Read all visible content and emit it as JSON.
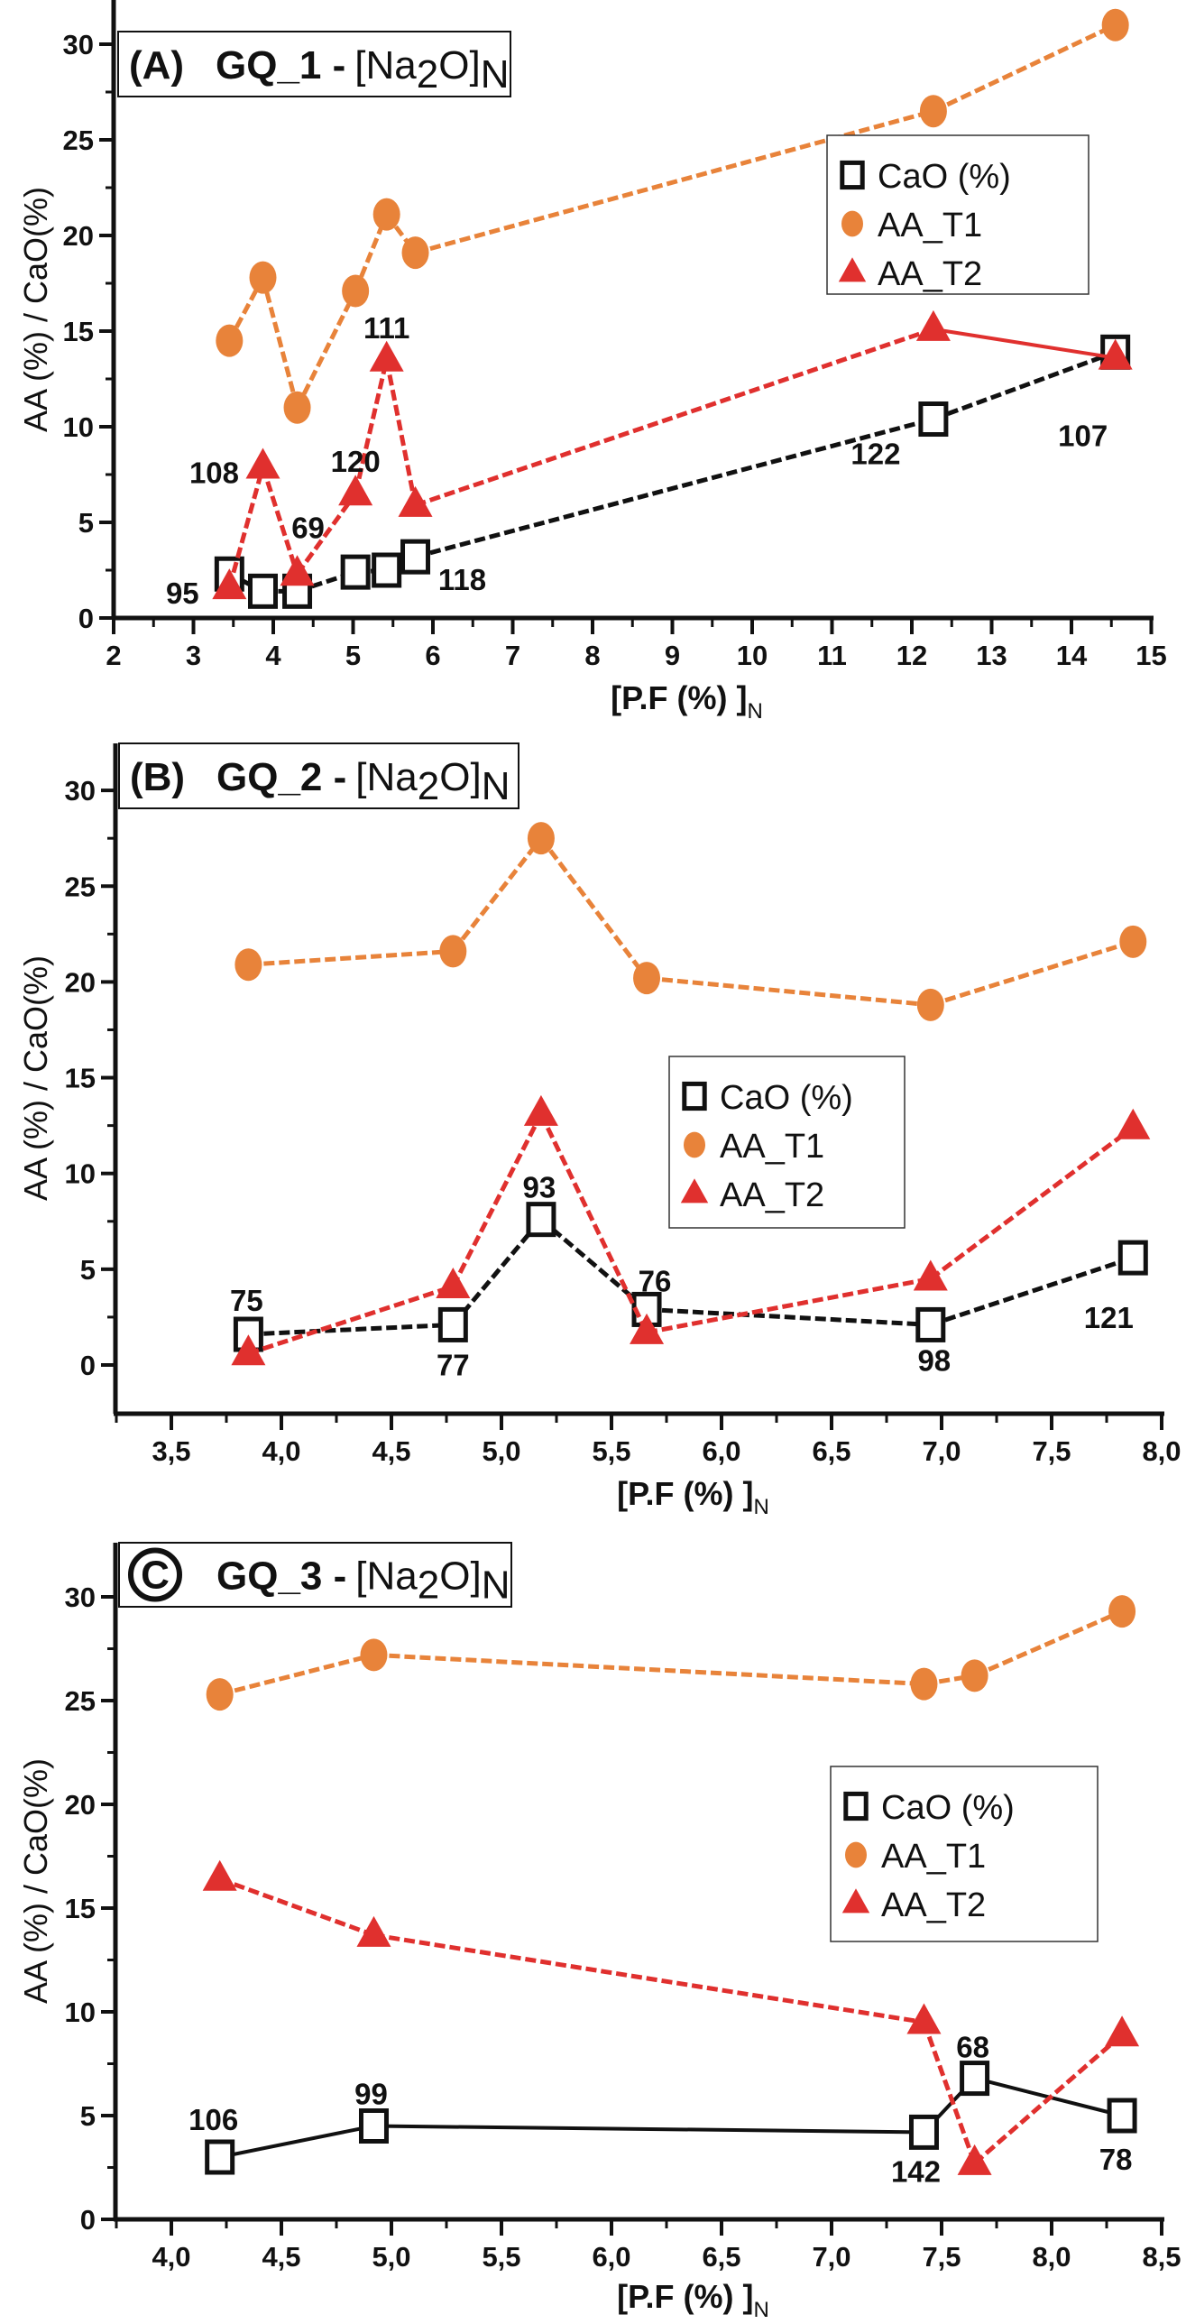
{
  "chart_data": [
    {
      "type": "line",
      "panel": "(A)",
      "title": {
        "sample": "GQ_1 -",
        "formula_open": "[Na",
        "formula_sub": "2",
        "formula_close": "O]",
        "formula_subscript": "N"
      },
      "xlabel": {
        "main": "[P.F (%) ]",
        "subscript": "N"
      },
      "ylabel": "AA (%) / CaO(%)",
      "xlim": [
        2,
        15
      ],
      "ylim": [
        0,
        32
      ],
      "xticks": [
        "2",
        "3",
        "4",
        "5",
        "6",
        "7",
        "8",
        "9",
        "10",
        "11",
        "12",
        "13",
        "14",
        "15"
      ],
      "yticks": [
        "0",
        "5",
        "10",
        "15",
        "20",
        "25",
        "30"
      ],
      "grid": false,
      "legend": "upper-right",
      "x": [
        3.45,
        3.87,
        4.3,
        5.03,
        5.42,
        5.78,
        12.27,
        14.55
      ],
      "series": [
        {
          "name": "CaO (%)",
          "marker": "open-square",
          "color": "#111111",
          "line": "dashed",
          "values": [
            2.3,
            1.4,
            1.4,
            2.4,
            2.5,
            3.2,
            10.4,
            13.9
          ]
        },
        {
          "name": "AA_T1",
          "marker": "circle",
          "color": "#E8833A",
          "line": "dashed",
          "values": [
            14.5,
            17.8,
            11.0,
            17.1,
            21.1,
            19.1,
            26.5,
            31.0
          ]
        },
        {
          "name": "AA_T2",
          "marker": "triangle",
          "color": "#E0302E",
          "line": "dashed",
          "values": [
            1.6,
            7.9,
            2.3,
            6.5,
            13.5,
            5.9,
            15.1,
            13.6
          ]
        }
      ],
      "point_labels": [
        "95",
        "108",
        "69",
        "120",
        "111",
        "118",
        "122",
        "107"
      ]
    },
    {
      "type": "line",
      "panel": "(B)",
      "title": {
        "sample": "GQ_2  -",
        "formula_open": "[Na",
        "formula_sub": "2",
        "formula_close": "O]",
        "formula_subscript": "N"
      },
      "xlabel": {
        "main": "[P.F (%) ]",
        "subscript": "N"
      },
      "ylabel": "AA (%) / CaO(%)",
      "xlim": [
        3.25,
        8.0
      ],
      "ylim": [
        -2.5,
        32
      ],
      "xticks": [
        "3,5",
        "4,0",
        "4,5",
        "5,0",
        "5,5",
        "6,0",
        "6,5",
        "7,0",
        "7,5",
        "8,0"
      ],
      "yticks": [
        "0",
        "5",
        "10",
        "15",
        "20",
        "25",
        "30"
      ],
      "grid": false,
      "legend": "center-right",
      "x": [
        3.85,
        4.78,
        5.18,
        5.66,
        6.95,
        7.87
      ],
      "series": [
        {
          "name": "CaO (%)",
          "marker": "open-square",
          "color": "#111111",
          "line": "dashed",
          "values": [
            1.6,
            2.1,
            7.6,
            2.9,
            2.1,
            5.6
          ]
        },
        {
          "name": "AA_T1",
          "marker": "circle",
          "color": "#E8833A",
          "line": "dashed",
          "values": [
            20.9,
            21.6,
            27.5,
            20.2,
            18.8,
            22.1
          ]
        },
        {
          "name": "AA_T2",
          "marker": "triangle",
          "color": "#E0302E",
          "line": "dashed",
          "values": [
            0.6,
            4.1,
            13.1,
            1.7,
            4.5,
            12.4
          ]
        }
      ],
      "point_labels": [
        "75",
        "77",
        "93",
        "76",
        "98",
        "121"
      ]
    },
    {
      "type": "line",
      "panel": "C",
      "title": {
        "sample": "GQ_3 -",
        "formula_open": "[Na",
        "formula_sub": "2",
        "formula_close": "O]",
        "formula_subscript": "N"
      },
      "xlabel": {
        "main": "[P.F (%) ]",
        "subscript": "N"
      },
      "ylabel": "AA (%) / CaO(%)",
      "xlim": [
        3.75,
        8.5
      ],
      "ylim": [
        0,
        32
      ],
      "xticks": [
        "4,0",
        "4,5",
        "5,0",
        "5,5",
        "6,0",
        "6,5",
        "7,0",
        "7,5",
        "8,0",
        "8,5"
      ],
      "yticks": [
        "0",
        "5",
        "10",
        "15",
        "20",
        "25",
        "30"
      ],
      "grid": false,
      "legend": "center-right",
      "x": [
        4.22,
        4.92,
        7.42,
        7.65,
        8.32
      ],
      "series": [
        {
          "name": "CaO (%)",
          "marker": "open-square",
          "color": "#111111",
          "line": "solid",
          "values": [
            3.0,
            4.5,
            4.2,
            6.8,
            5.0
          ]
        },
        {
          "name": "AA_T1",
          "marker": "circle",
          "color": "#E8833A",
          "line": "dashed",
          "values": [
            25.3,
            27.2,
            25.8,
            26.2,
            29.3
          ]
        },
        {
          "name": "AA_T2",
          "marker": "triangle",
          "color": "#E0302E",
          "line": "dashed",
          "values": [
            16.4,
            13.7,
            9.5,
            2.7,
            8.9
          ]
        }
      ],
      "point_labels": [
        "106",
        "99",
        "142",
        "68",
        "78"
      ]
    }
  ]
}
